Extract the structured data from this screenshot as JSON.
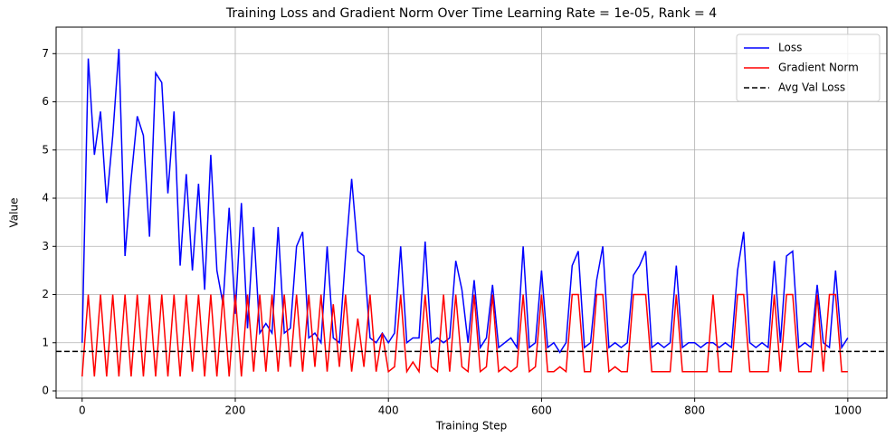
{
  "chart_data": {
    "type": "line",
    "title": "Training Loss and Gradient Norm Over Time Learning Rate = 1e-05, Rank = 4",
    "x_label": "Training Step",
    "y_label": "Value",
    "x": [
      0,
      8,
      16,
      24,
      32,
      40,
      48,
      56,
      64,
      72,
      80,
      88,
      96,
      104,
      112,
      120,
      128,
      136,
      144,
      152,
      160,
      168,
      176,
      184,
      192,
      200,
      208,
      216,
      224,
      232,
      240,
      248,
      256,
      264,
      272,
      280,
      288,
      296,
      304,
      312,
      320,
      328,
      336,
      344,
      352,
      360,
      368,
      376,
      384,
      392,
      400,
      408,
      416,
      424,
      432,
      440,
      448,
      456,
      464,
      472,
      480,
      488,
      496,
      504,
      512,
      520,
      528,
      536,
      544,
      552,
      560,
      568,
      576,
      584,
      592,
      600,
      608,
      616,
      624,
      632,
      640,
      648,
      656,
      664,
      672,
      680,
      688,
      696,
      704,
      712,
      720,
      728,
      736,
      744,
      752,
      760,
      768,
      776,
      784,
      792,
      800,
      808,
      816,
      824,
      832,
      840,
      848,
      856,
      864,
      872,
      880,
      888,
      896,
      904,
      912,
      920,
      928,
      936,
      944,
      952,
      960,
      968,
      976,
      984,
      992,
      1000
    ],
    "series": [
      {
        "name": "Loss",
        "color": "#0000ff",
        "values": [
          1.0,
          6.9,
          4.9,
          5.8,
          3.9,
          5.3,
          7.1,
          2.8,
          4.4,
          5.7,
          5.3,
          3.2,
          6.6,
          6.4,
          4.1,
          5.8,
          2.6,
          4.5,
          2.5,
          4.3,
          2.1,
          4.9,
          2.5,
          1.8,
          3.8,
          1.6,
          3.9,
          1.3,
          3.4,
          1.2,
          1.4,
          1.2,
          3.4,
          1.2,
          1.3,
          3.0,
          3.3,
          1.1,
          1.2,
          1.0,
          3.0,
          1.1,
          1.0,
          2.8,
          4.4,
          2.9,
          2.8,
          1.1,
          1.0,
          1.2,
          1.0,
          1.2,
          3.0,
          1.0,
          1.1,
          1.1,
          3.1,
          1.0,
          1.1,
          1.0,
          1.1,
          2.7,
          2.1,
          1.0,
          2.3,
          0.9,
          1.1,
          2.2,
          0.9,
          1.0,
          1.1,
          0.9,
          3.0,
          0.9,
          1.0,
          2.5,
          0.9,
          1.0,
          0.8,
          1.0,
          2.6,
          2.9,
          0.9,
          1.0,
          2.3,
          3.0,
          0.9,
          1.0,
          0.9,
          1.0,
          2.4,
          2.6,
          2.9,
          0.9,
          1.0,
          0.9,
          1.0,
          2.6,
          0.9,
          1.0,
          1.0,
          0.9,
          1.0,
          1.0,
          0.9,
          1.0,
          0.9,
          2.5,
          3.3,
          1.0,
          0.9,
          1.0,
          0.9,
          2.7,
          1.0,
          2.8,
          2.9,
          0.9,
          1.0,
          0.9,
          2.2,
          1.0,
          0.9,
          2.5,
          0.9,
          1.1
        ]
      },
      {
        "name": "Gradient Norm",
        "color": "#ff0000",
        "values": [
          0.3,
          2.0,
          0.3,
          2.0,
          0.3,
          2.0,
          0.3,
          2.0,
          0.3,
          2.0,
          0.3,
          2.0,
          0.3,
          2.0,
          0.3,
          2.0,
          0.3,
          2.0,
          0.4,
          2.0,
          0.3,
          2.0,
          0.3,
          2.0,
          0.3,
          2.0,
          0.3,
          2.0,
          0.4,
          2.0,
          0.4,
          2.0,
          0.4,
          2.0,
          0.5,
          2.0,
          0.4,
          2.0,
          0.5,
          2.0,
          0.4,
          1.8,
          0.5,
          2.0,
          0.4,
          1.5,
          0.5,
          2.0,
          0.4,
          1.2,
          0.4,
          0.5,
          2.0,
          0.4,
          0.6,
          0.4,
          2.0,
          0.5,
          0.4,
          2.0,
          0.4,
          2.0,
          0.5,
          0.4,
          2.0,
          0.4,
          0.5,
          2.0,
          0.4,
          0.5,
          0.4,
          0.5,
          2.0,
          0.4,
          0.5,
          2.0,
          0.4,
          0.4,
          0.5,
          0.4,
          2.0,
          2.0,
          0.4,
          0.4,
          2.0,
          2.0,
          0.4,
          0.5,
          0.4,
          0.4,
          2.0,
          2.0,
          2.0,
          0.4,
          0.4,
          0.4,
          0.4,
          2.0,
          0.4,
          0.4,
          0.4,
          0.4,
          0.4,
          2.0,
          0.4,
          0.4,
          0.4,
          2.0,
          2.0,
          0.4,
          0.4,
          0.4,
          0.4,
          2.0,
          0.4,
          2.0,
          2.0,
          0.4,
          0.4,
          0.4,
          2.0,
          0.4,
          2.0,
          2.0,
          0.4,
          0.4
        ]
      }
    ],
    "reference_line": {
      "name": "Avg Val Loss",
      "value": 0.82,
      "color": "#000000"
    },
    "xlim": [
      -34,
      1051
    ],
    "ylim": [
      -0.15,
      7.55
    ],
    "xticks": [
      0,
      200,
      400,
      600,
      800,
      1000
    ],
    "yticks": [
      0,
      1,
      2,
      3,
      4,
      5,
      6,
      7
    ],
    "grid": true,
    "legend": "upper right"
  }
}
